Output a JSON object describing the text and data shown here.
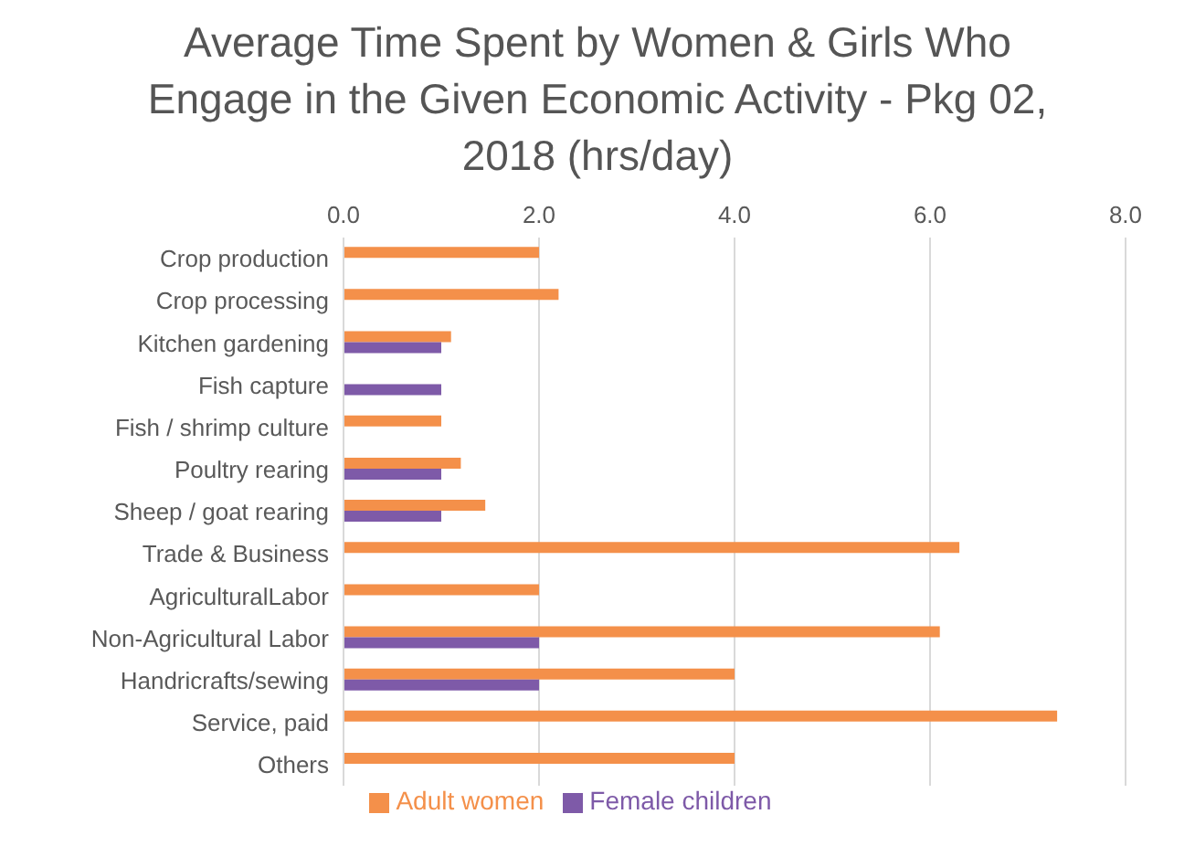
{
  "chart_data": {
    "type": "bar",
    "orientation": "horizontal",
    "title": "Average Time Spent by Women & Girls Who Engage in the Given Economic Activity - Pkg 02, 2018 (hrs/day)",
    "categories": [
      "Crop production",
      "Crop processing",
      "Kitchen gardening",
      "Fish capture",
      "Fish / shrimp culture",
      "Poultry rearing",
      "Sheep / goat rearing",
      "Trade & Business",
      "AgriculturalLabor",
      "Non-Agricultural Labor",
      "Handricrafts/sewing",
      "Service, paid",
      "Others"
    ],
    "series": [
      {
        "name": "Adult women",
        "color": "#f4904a",
        "values": [
          2.0,
          2.2,
          1.1,
          null,
          1.0,
          1.2,
          1.45,
          6.3,
          2.0,
          6.1,
          4.0,
          7.3,
          4.0
        ]
      },
      {
        "name": "Female children",
        "color": "#7e5aa8",
        "values": [
          null,
          null,
          1.0,
          1.0,
          null,
          1.0,
          1.0,
          null,
          null,
          2.0,
          2.0,
          null,
          null
        ]
      }
    ],
    "xlim": [
      0,
      8
    ],
    "xticks": [
      {
        "value": 0,
        "label": "0.0"
      },
      {
        "value": 2,
        "label": "2.0"
      },
      {
        "value": 4,
        "label": "4.0"
      },
      {
        "value": 6,
        "label": "6.0"
      },
      {
        "value": 8,
        "label": "8.0"
      }
    ],
    "grid": "x",
    "legend": "bottom"
  }
}
